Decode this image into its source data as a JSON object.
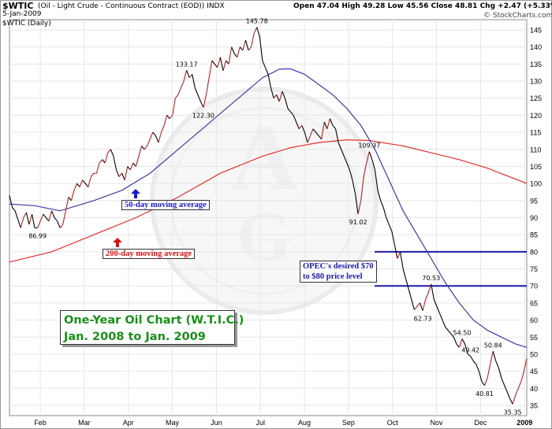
{
  "header": {
    "symbol": "$WTIC",
    "description": "(Oil - Light Crude - Continuous Contract (EOD)) INDX",
    "quote": "Open 47.04  High 49.28  Low 45.56  Close 48.81  Chg +2.47 (+5.33%)",
    "date": "5-Jan-2009",
    "series_label": "$WTIC (Daily)",
    "credit": "© StockCharts.com"
  },
  "overlay": {
    "title_line1": "One-Year Oil Chart (W.T.I.C.)",
    "title_line2": "Jan. 2008 to Jan. 2009",
    "ma50_label": "50-day moving average",
    "ma200_label": "200-day moving average",
    "opec_line1": "OPEC's desired $70",
    "opec_line2": "to $80 price level"
  },
  "colors": {
    "price": "#000000",
    "price_up": "#b22222",
    "ma50": "#3c3ca0",
    "ma200": "#e03030",
    "opec": "#1a1aaa",
    "title": "#1a8f1a"
  },
  "chart_data": {
    "type": "line",
    "x_tick_labels": [
      "Feb",
      "Mar",
      "Apr",
      "May",
      "Jun",
      "Jul",
      "Aug",
      "Sep",
      "Oct",
      "Nov",
      "Dec",
      "2009"
    ],
    "y_tick_labels": [
      35,
      40,
      45,
      50,
      55,
      60,
      65,
      70,
      75,
      80,
      85,
      90,
      95,
      100,
      105,
      110,
      115,
      120,
      125,
      130,
      135,
      140,
      145
    ],
    "ylim": [
      32,
      148
    ],
    "price": [
      [
        0,
        96.5
      ],
      [
        1,
        93
      ],
      [
        2,
        92
      ],
      [
        3,
        89.5
      ],
      [
        4,
        87
      ],
      [
        5,
        90
      ],
      [
        6,
        91.5
      ],
      [
        7,
        88
      ],
      [
        8,
        91
      ],
      [
        9,
        87
      ],
      [
        10,
        86.99
      ],
      [
        11,
        89
      ],
      [
        12,
        91
      ],
      [
        13,
        90
      ],
      [
        14,
        89
      ],
      [
        15,
        92
      ],
      [
        16,
        90
      ],
      [
        17,
        89
      ],
      [
        18,
        87
      ],
      [
        19,
        88
      ],
      [
        20,
        92
      ],
      [
        21,
        96
      ],
      [
        22,
        95
      ],
      [
        23,
        98
      ],
      [
        24,
        100
      ],
      [
        25,
        99
      ],
      [
        26,
        101
      ],
      [
        27,
        100
      ],
      [
        28,
        99
      ],
      [
        29,
        102
      ],
      [
        30,
        103
      ],
      [
        31,
        103
      ],
      [
        32,
        106
      ],
      [
        33,
        107
      ],
      [
        34,
        106
      ],
      [
        35,
        109
      ],
      [
        36,
        110
      ],
      [
        37,
        108
      ],
      [
        38,
        104
      ],
      [
        39,
        102
      ],
      [
        40,
        103
      ],
      [
        41,
        101
      ],
      [
        42,
        105
      ],
      [
        43,
        104
      ],
      [
        44,
        106
      ],
      [
        45,
        105
      ],
      [
        46,
        108
      ],
      [
        47,
        111
      ],
      [
        48,
        110
      ],
      [
        49,
        111
      ],
      [
        50,
        113
      ],
      [
        51,
        115
      ],
      [
        52,
        114
      ],
      [
        53,
        112
      ],
      [
        54,
        115
      ],
      [
        55,
        117
      ],
      [
        56,
        120
      ],
      [
        57,
        119
      ],
      [
        58,
        120
      ],
      [
        59,
        125
      ],
      [
        60,
        126
      ],
      [
        61,
        128
      ],
      [
        62,
        130
      ],
      [
        63,
        133.17
      ],
      [
        64,
        131
      ],
      [
        65,
        132
      ],
      [
        66,
        128
      ],
      [
        67,
        126
      ],
      [
        68,
        124
      ],
      [
        69,
        122.3
      ],
      [
        70,
        126
      ],
      [
        71,
        131
      ],
      [
        72,
        136
      ],
      [
        73,
        135
      ],
      [
        74,
        134
      ],
      [
        75,
        137
      ],
      [
        76,
        133
      ],
      [
        77,
        136
      ],
      [
        78,
        135
      ],
      [
        79,
        140
      ],
      [
        80,
        138
      ],
      [
        81,
        137
      ],
      [
        82,
        140
      ],
      [
        83,
        139
      ],
      [
        84,
        142
      ],
      [
        85,
        139
      ],
      [
        86,
        140
      ],
      [
        87,
        144
      ],
      [
        88,
        145.78
      ],
      [
        89,
        143
      ],
      [
        90,
        136
      ],
      [
        91,
        134
      ],
      [
        92,
        132
      ],
      [
        93,
        128
      ],
      [
        94,
        125
      ],
      [
        95,
        126
      ],
      [
        96,
        124
      ],
      [
        97,
        127
      ],
      [
        98,
        125
      ],
      [
        99,
        122
      ],
      [
        100,
        121
      ],
      [
        101,
        120
      ],
      [
        102,
        118
      ],
      [
        103,
        116
      ],
      [
        104,
        117
      ],
      [
        105,
        115
      ],
      [
        106,
        112
      ],
      [
        107,
        114
      ],
      [
        108,
        116
      ],
      [
        109,
        115
      ],
      [
        110,
        114
      ],
      [
        111,
        113
      ],
      [
        112,
        118
      ],
      [
        113,
        116
      ],
      [
        114,
        119
      ],
      [
        115,
        117
      ],
      [
        116,
        116
      ],
      [
        117,
        112
      ],
      [
        118,
        110
      ],
      [
        119,
        108
      ],
      [
        120,
        106
      ],
      [
        121,
        104
      ],
      [
        122,
        101
      ],
      [
        123,
        97
      ],
      [
        124,
        91.02
      ],
      [
        125,
        95
      ],
      [
        126,
        102
      ],
      [
        127,
        106
      ],
      [
        128,
        109.37
      ],
      [
        129,
        107
      ],
      [
        130,
        104
      ],
      [
        131,
        98
      ],
      [
        132,
        95
      ],
      [
        133,
        93
      ],
      [
        134,
        90
      ],
      [
        135,
        88
      ],
      [
        136,
        86
      ],
      [
        137,
        82
      ],
      [
        138,
        78
      ],
      [
        139,
        80
      ],
      [
        140,
        75
      ],
      [
        141,
        72
      ],
      [
        142,
        69
      ],
      [
        143,
        66
      ],
      [
        144,
        63
      ],
      [
        145,
        64
      ],
      [
        146,
        65
      ],
      [
        147,
        62.73
      ],
      [
        148,
        66
      ],
      [
        149,
        68
      ],
      [
        150,
        70.53
      ],
      [
        151,
        66
      ],
      [
        152,
        64
      ],
      [
        153,
        62
      ],
      [
        154,
        60
      ],
      [
        155,
        58
      ],
      [
        156,
        57
      ],
      [
        157,
        56
      ],
      [
        158,
        55
      ],
      [
        159,
        53
      ],
      [
        160,
        52
      ],
      [
        161,
        54.5
      ],
      [
        162,
        53
      ],
      [
        163,
        50
      ],
      [
        164,
        49.42
      ],
      [
        165,
        48
      ],
      [
        166,
        47
      ],
      [
        167,
        45
      ],
      [
        168,
        42
      ],
      [
        169,
        40.81
      ],
      [
        170,
        43
      ],
      [
        171,
        47
      ],
      [
        172,
        50.84
      ],
      [
        173,
        48
      ],
      [
        174,
        46
      ],
      [
        175,
        43
      ],
      [
        176,
        41
      ],
      [
        177,
        39
      ],
      [
        178,
        37
      ],
      [
        179,
        35.35
      ],
      [
        180,
        38
      ],
      [
        181,
        40
      ],
      [
        182,
        42
      ],
      [
        183,
        45
      ],
      [
        184,
        48.81
      ]
    ],
    "ma50": [
      [
        0,
        94
      ],
      [
        9,
        93.5
      ],
      [
        18,
        92
      ],
      [
        30,
        95
      ],
      [
        40,
        98
      ],
      [
        50,
        103
      ],
      [
        60,
        110
      ],
      [
        70,
        117
      ],
      [
        80,
        124
      ],
      [
        90,
        131
      ],
      [
        96,
        133.5
      ],
      [
        100,
        133.6
      ],
      [
        105,
        132
      ],
      [
        110,
        129
      ],
      [
        115,
        126
      ],
      [
        120,
        122
      ],
      [
        125,
        117
      ],
      [
        130,
        110
      ],
      [
        135,
        101
      ],
      [
        140,
        92
      ],
      [
        145,
        85
      ],
      [
        150,
        78
      ],
      [
        155,
        71
      ],
      [
        160,
        65
      ],
      [
        165,
        60
      ],
      [
        170,
        57
      ],
      [
        175,
        55
      ],
      [
        180,
        53
      ],
      [
        184,
        52
      ]
    ],
    "ma200": [
      [
        0,
        77
      ],
      [
        15,
        80
      ],
      [
        30,
        85
      ],
      [
        45,
        90
      ],
      [
        60,
        96
      ],
      [
        75,
        103
      ],
      [
        90,
        108
      ],
      [
        100,
        110.5
      ],
      [
        110,
        112
      ],
      [
        120,
        112.8
      ],
      [
        128,
        112.6
      ],
      [
        140,
        111
      ],
      [
        150,
        109
      ],
      [
        160,
        107
      ],
      [
        170,
        104.5
      ],
      [
        184,
        100
      ]
    ],
    "opec_levels": [
      70,
      80
    ],
    "price_labels": [
      "86.99",
      "133.17",
      "122.30",
      "145.78",
      "109.37",
      "91.02",
      "70.53",
      "62.73",
      "54.50",
      "49.42",
      "50.84",
      "40.81",
      "35.35"
    ],
    "grid": true
  }
}
